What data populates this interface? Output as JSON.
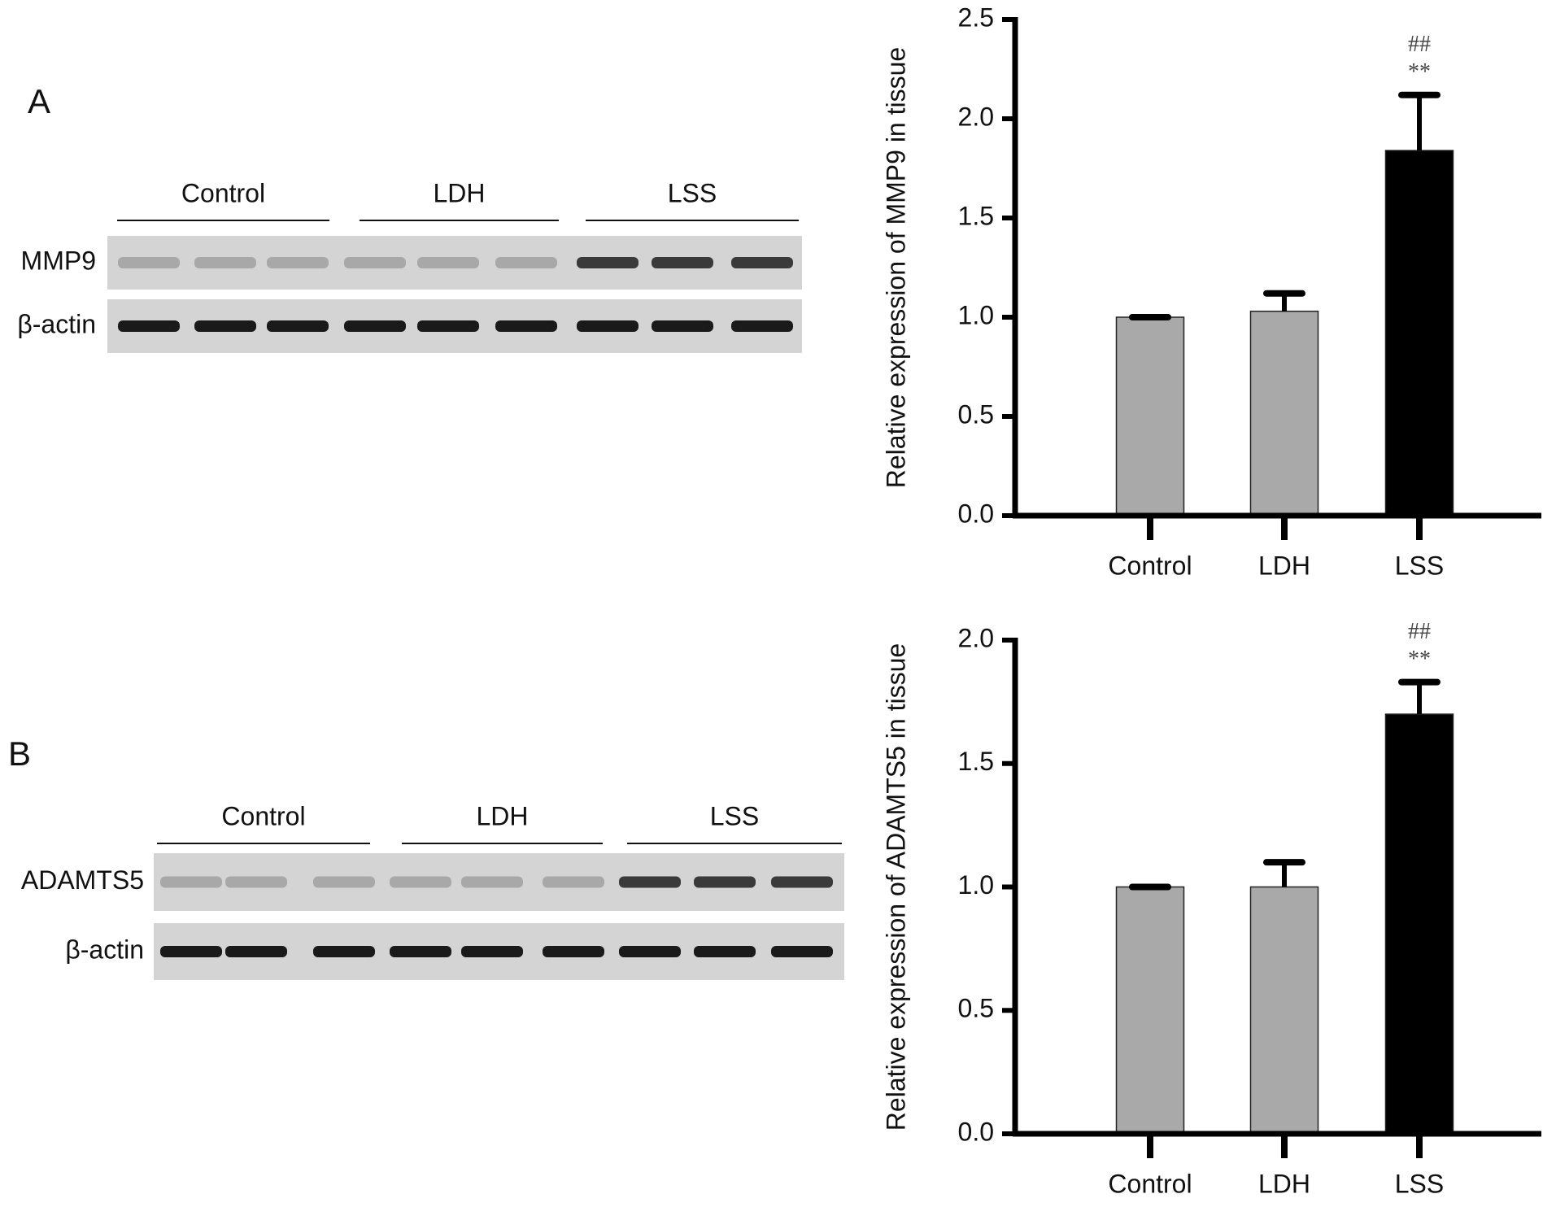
{
  "panels": [
    {
      "label": "A",
      "gel": {
        "groups": [
          "Control",
          "LDH",
          "LSS"
        ],
        "rows": [
          "MMP9",
          "β-actin"
        ]
      }
    },
    {
      "label": "B",
      "gel": {
        "groups": [
          "Control",
          "LDH",
          "LSS"
        ],
        "rows": [
          "ADAMTS5",
          "β-actin"
        ]
      }
    }
  ],
  "chart_data": [
    {
      "type": "bar",
      "y_label": "Relative expression of MMP9 in tissue",
      "categories": [
        "Control",
        "LDH",
        "LSS"
      ],
      "values": [
        1.0,
        1.03,
        1.84
      ],
      "errors": [
        0,
        0.09,
        0.28
      ],
      "colors": [
        "#a9a9a9",
        "#a9a9a9",
        "#000000"
      ],
      "ylim": [
        0,
        2.5
      ],
      "yticks": [
        {
          "value": 0,
          "label": "0.0"
        },
        0.5,
        {
          "value": 1,
          "label": "1.0"
        },
        1.5,
        {
          "value": 2,
          "label": "2.0"
        },
        2.5
      ],
      "annotations": [
        "##",
        "**"
      ]
    },
    {
      "type": "bar",
      "y_label": "Relative expression of ADAMTS5 in tissue",
      "categories": [
        "Control",
        "LDH",
        "LSS"
      ],
      "values": [
        1.0,
        1.0,
        1.7
      ],
      "errors": [
        0,
        0.1,
        0.13
      ],
      "colors": [
        "#a9a9a9",
        "#a9a9a9",
        "#000000"
      ],
      "ylim": [
        0,
        2.0
      ],
      "yticks": [
        {
          "value": 0,
          "label": "0.0"
        },
        0.5,
        {
          "value": 1,
          "label": "1.0"
        },
        1.5,
        {
          "value": 2,
          "label": "2.0"
        }
      ],
      "annotations": [
        "##",
        "**"
      ]
    }
  ]
}
